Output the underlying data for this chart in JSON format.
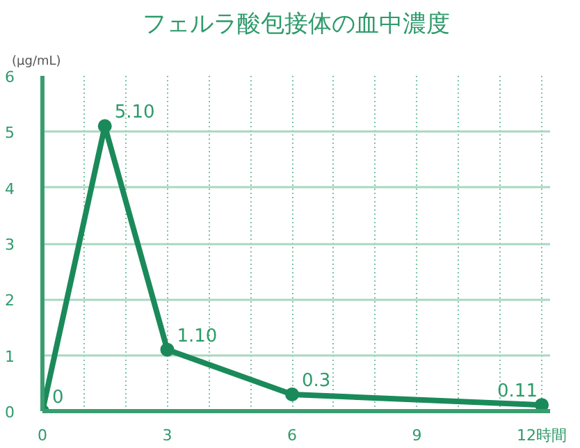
{
  "chart_data": {
    "type": "line",
    "title": "フェルラ酸包接体の血中濃度",
    "ylabel": "(μg/mL)",
    "x": [
      0,
      1.5,
      3,
      6,
      12
    ],
    "series": [
      {
        "color": "#1b8a5a",
        "values": [
          0,
          5.1,
          1.1,
          0.3,
          0.11
        ],
        "value_labels": [
          "0",
          "5.10",
          "1.10",
          "0.3",
          "0.11"
        ]
      }
    ],
    "marker": "circle",
    "line_style": "solid",
    "grid": true,
    "xlim": [
      0,
      12.2
    ],
    "ylim": [
      0,
      6
    ],
    "xticks": [
      0,
      {
        "value": 1,
        "label": null
      },
      {
        "value": 2,
        "label": null
      },
      3,
      {
        "value": 4,
        "label": null
      },
      {
        "value": 5,
        "label": null
      },
      6,
      {
        "value": 7,
        "label": null
      },
      {
        "value": 8,
        "label": null
      },
      9,
      {
        "value": 10,
        "label": null
      },
      {
        "value": 11,
        "label": null
      },
      {
        "value": 12,
        "label": "12時間"
      }
    ],
    "yticks": [
      0,
      1,
      2,
      3,
      4,
      5,
      6
    ]
  }
}
